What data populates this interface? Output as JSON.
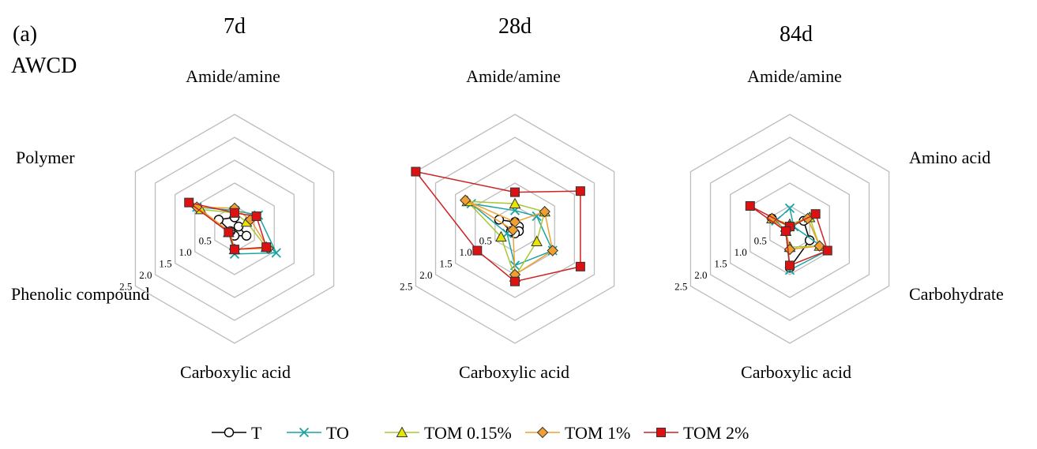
{
  "panel_label": "(a)",
  "metric_label": "AWCD",
  "axis_categories": [
    "Amide/amine",
    "Amino acid",
    "Carbohydrate",
    "Carboxylic acid",
    "Phenolic compound",
    "Polymer"
  ],
  "legend": [
    {
      "name": "T",
      "color": "#000000",
      "marker": "circle",
      "fill": "#ffffff"
    },
    {
      "name": "TO",
      "color": "#1aa3a3",
      "marker": "x",
      "fill": "none"
    },
    {
      "name": "TOM 0.15%",
      "color": "#a8c832",
      "marker": "triangle",
      "fill": "#e6e600"
    },
    {
      "name": "TOM 1%",
      "color": "#f0a030",
      "marker": "diamond",
      "fill": "#f0a030"
    },
    {
      "name": "TOM 2%",
      "color": "#cc2222",
      "marker": "square",
      "fill": "#dd1111"
    }
  ],
  "chart_data": [
    {
      "type": "radar",
      "title": "7d",
      "categories": [
        "Amide/amine",
        "Amino acid",
        "Carbohydrate",
        "Carboxylic acid",
        "Phenolic compound",
        "Polymer"
      ],
      "axis_labels_shown": [
        "Amide/amine",
        "",
        "",
        "Carboxylic acid",
        "Phenolic compound",
        "Polymer"
      ],
      "ticks": [
        "0.5",
        "1.0",
        "1.5",
        "2.0",
        "2.5"
      ],
      "rlim": [
        0,
        2.5
      ],
      "grid": true,
      "series": [
        {
          "name": "T",
          "values": [
            0.25,
            0.1,
            0.3,
            0.15,
            0.1,
            0.4
          ]
        },
        {
          "name": "TO",
          "values": [
            0.4,
            0.6,
            1.05,
            0.55,
            0.15,
            0.95
          ]
        },
        {
          "name": "TOM 0.15%",
          "values": [
            0.35,
            0.3,
            0.8,
            0.45,
            0.15,
            0.85
          ]
        },
        {
          "name": "TOM 1%",
          "values": [
            0.45,
            0.4,
            0.85,
            0.45,
            0.12,
            0.95
          ]
        },
        {
          "name": "TOM 2%",
          "values": [
            0.35,
            0.55,
            0.8,
            0.45,
            0.15,
            1.15
          ]
        }
      ]
    },
    {
      "type": "radar",
      "title": "28d",
      "categories": [
        "Amide/amine",
        "Amino acid",
        "Carbohydrate",
        "Carboxylic acid",
        "Phenolic compound",
        "Polymer"
      ],
      "axis_labels_shown": [
        "Amide/amine",
        "",
        "",
        "Carboxylic acid",
        "",
        ""
      ],
      "ticks": [
        "0.5",
        "1.0",
        "1.5",
        "2.0",
        "2.5"
      ],
      "rlim": [
        0,
        2.5
      ],
      "grid": true,
      "series": [
        {
          "name": "T",
          "values": [
            0.15,
            0.1,
            0.1,
            0.1,
            0.1,
            0.4
          ]
        },
        {
          "name": "TO",
          "values": [
            0.4,
            0.55,
            0.95,
            0.8,
            0.2,
            1.1
          ]
        },
        {
          "name": "TOM 0.15%",
          "values": [
            0.55,
            0.75,
            0.55,
            1.05,
            0.35,
            1.2
          ]
        },
        {
          "name": "TOM 1%",
          "values": [
            0.15,
            0.75,
            0.95,
            1.0,
            0.05,
            1.25
          ]
        },
        {
          "name": "TOM 2%",
          "values": [
            0.8,
            1.65,
            1.65,
            1.15,
            0.95,
            2.5
          ]
        }
      ]
    },
    {
      "type": "radar",
      "title": "84d",
      "categories": [
        "Amide/amine",
        "Amino acid",
        "Carbohydrate",
        "Carboxylic acid",
        "Phenolic compound",
        "Polymer"
      ],
      "axis_labels_shown": [
        "Amide/amine",
        "Amino acid",
        "Carbohydrate",
        "Carboxylic acid",
        "",
        ""
      ],
      "ticks": [
        "0.5",
        "1.0",
        "1.5",
        "2.0",
        "2.5"
      ],
      "rlim": [
        0,
        2.5
      ],
      "grid": true,
      "series": [
        {
          "name": "T",
          "values": [
            0.05,
            0.35,
            0.5,
            0.85,
            0.1,
            0.45
          ]
        },
        {
          "name": "TO",
          "values": [
            0.45,
            0.1,
            0.95,
            0.9,
            0.1,
            0.35
          ]
        },
        {
          "name": "TOM 0.15%",
          "values": [
            0.1,
            0.5,
            0.75,
            0.4,
            0.1,
            0.45
          ]
        },
        {
          "name": "TOM 1%",
          "values": [
            0.05,
            0.45,
            0.75,
            0.45,
            0.1,
            0.45
          ]
        },
        {
          "name": "TOM 2%",
          "values": [
            0.05,
            0.65,
            0.95,
            0.8,
            0.1,
            1.0
          ]
        }
      ]
    }
  ]
}
